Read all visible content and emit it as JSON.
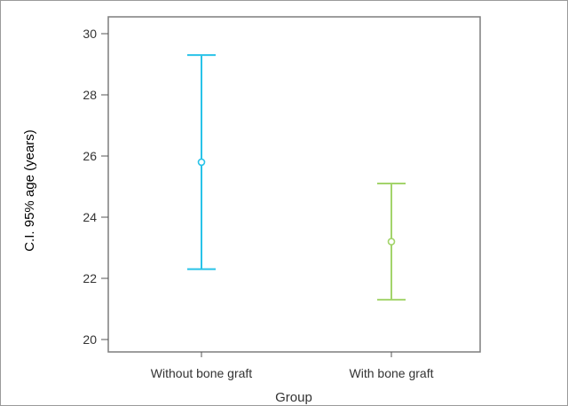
{
  "chart_data": {
    "type": "errorbar",
    "title": "",
    "xlabel": "Group",
    "ylabel": "C.I. 95% age (years)",
    "ylim": [
      20,
      30
    ],
    "yticks": [
      20,
      22,
      24,
      26,
      28,
      30
    ],
    "grid": false,
    "categories": [
      "Without bone graft",
      "With bone graft"
    ],
    "series": [
      {
        "values": [
          25.8,
          23.2
        ],
        "lower": [
          22.3,
          21.3
        ],
        "upper": [
          29.3,
          25.1
        ],
        "colors": [
          "#29c3e8",
          "#a3d46b"
        ]
      }
    ]
  }
}
